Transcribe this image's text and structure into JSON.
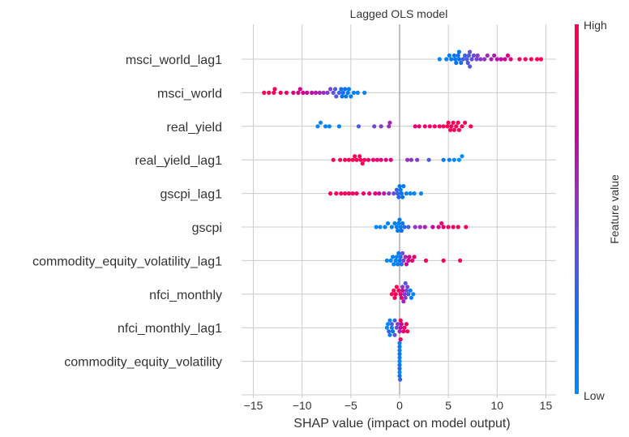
{
  "chart_data": {
    "type": "scatter",
    "subtype": "shap-beeswarm",
    "title": "Lagged OLS model",
    "xlabel": "SHAP value (impact on model output)",
    "ylabel": "",
    "xlim": [
      -16.5,
      16
    ],
    "xticks": [
      -15,
      -10,
      -5,
      0,
      5,
      10,
      15
    ],
    "xtick_labels": [
      "−15",
      "−10",
      "−5",
      "0",
      "5",
      "10",
      "15"
    ],
    "grid": true,
    "colorbar": {
      "label": "Feature value",
      "high_label": "High",
      "low_label": "Low",
      "low_color": "#008bfb",
      "high_color": "#ff0052"
    },
    "features": [
      {
        "name": "msci_world_lag1",
        "points": [
          [
            4.1,
            0.05
          ],
          [
            4.8,
            0.1
          ],
          [
            5.1,
            0.12
          ],
          [
            5.3,
            0.15
          ],
          [
            5.6,
            0.18
          ],
          [
            5.8,
            0.2
          ],
          [
            6.0,
            0.2
          ],
          [
            6.1,
            0.22
          ],
          [
            6.3,
            0.25
          ],
          [
            6.5,
            0.3
          ],
          [
            6.7,
            0.32
          ],
          [
            6.9,
            0.35
          ],
          [
            7.0,
            0.36
          ],
          [
            7.2,
            0.38
          ],
          [
            7.4,
            0.4
          ],
          [
            7.6,
            0.42
          ],
          [
            7.9,
            0.45
          ],
          [
            8.3,
            0.5
          ],
          [
            8.7,
            0.55
          ],
          [
            9.0,
            0.58
          ],
          [
            9.4,
            0.6
          ],
          [
            9.7,
            0.63
          ],
          [
            10.0,
            0.65
          ],
          [
            10.4,
            0.7
          ],
          [
            10.8,
            0.75
          ],
          [
            11.1,
            0.78
          ],
          [
            11.4,
            0.82
          ],
          [
            12.3,
            0.9
          ],
          [
            12.9,
            0.93
          ],
          [
            13.5,
            0.96
          ],
          [
            14.1,
            0.98
          ],
          [
            14.5,
            1.0
          ],
          [
            5.7,
            0.15
          ],
          [
            6.1,
            0.18
          ],
          [
            7.1,
            0.33
          ],
          [
            7.2,
            0.37
          ],
          [
            8.0,
            0.47
          ]
        ]
      },
      {
        "name": "msci_world",
        "points": [
          [
            -13.9,
            1.0
          ],
          [
            -13.4,
            0.98
          ],
          [
            -12.8,
            0.95
          ],
          [
            -12.2,
            0.93
          ],
          [
            -11.6,
            0.9
          ],
          [
            -10.9,
            0.8
          ],
          [
            -10.4,
            0.78
          ],
          [
            -9.9,
            0.75
          ],
          [
            -9.5,
            0.72
          ],
          [
            -9.0,
            0.68
          ],
          [
            -8.6,
            0.63
          ],
          [
            -8.2,
            0.6
          ],
          [
            -7.8,
            0.55
          ],
          [
            -7.4,
            0.5
          ],
          [
            -7.1,
            0.45
          ],
          [
            -6.8,
            0.4
          ],
          [
            -6.5,
            0.36
          ],
          [
            -6.2,
            0.3
          ],
          [
            -6.0,
            0.25
          ],
          [
            -5.8,
            0.22
          ],
          [
            -5.5,
            0.18
          ],
          [
            -5.3,
            0.15
          ],
          [
            -5.0,
            0.12
          ],
          [
            -4.7,
            0.1
          ],
          [
            -4.3,
            0.08
          ],
          [
            -3.6,
            0.05
          ],
          [
            -12.9,
            0.96
          ],
          [
            -10.2,
            0.77
          ],
          [
            -6.6,
            0.35
          ],
          [
            -5.9,
            0.2
          ],
          [
            -5.6,
            0.2
          ],
          [
            -5.2,
            0.12
          ]
        ]
      },
      {
        "name": "real_yield",
        "points": [
          [
            -8.4,
            0.02
          ],
          [
            -8.1,
            0.03
          ],
          [
            -7.6,
            0.05
          ],
          [
            -7.2,
            0.06
          ],
          [
            -6.2,
            0.08
          ],
          [
            -4.2,
            0.35
          ],
          [
            -2.6,
            0.45
          ],
          [
            -1.9,
            0.5
          ],
          [
            -1.1,
            0.55
          ],
          [
            -1.0,
            0.6
          ],
          [
            1.6,
            0.85
          ],
          [
            2.0,
            0.88
          ],
          [
            2.6,
            0.88
          ],
          [
            3.1,
            0.9
          ],
          [
            3.6,
            0.92
          ],
          [
            4.1,
            0.95
          ],
          [
            4.5,
            0.97
          ],
          [
            4.9,
            1.0
          ],
          [
            5.2,
            1.0
          ],
          [
            5.5,
            0.98
          ],
          [
            5.8,
            1.0
          ],
          [
            6.1,
            0.98
          ],
          [
            6.4,
            0.96
          ],
          [
            6.7,
            1.0
          ],
          [
            7.3,
            1.0
          ],
          [
            5.0,
            0.97
          ],
          [
            5.6,
            0.99
          ],
          [
            6.0,
            1.0
          ],
          [
            5.3,
            0.98
          ]
        ]
      },
      {
        "name": "real_yield_lag1",
        "points": [
          [
            -6.8,
            1.0
          ],
          [
            -6.1,
            1.0
          ],
          [
            -5.6,
            0.98
          ],
          [
            -5.2,
            0.98
          ],
          [
            -4.8,
            1.0
          ],
          [
            -4.4,
            0.97
          ],
          [
            -4.0,
            0.96
          ],
          [
            -3.6,
            0.95
          ],
          [
            -3.2,
            0.93
          ],
          [
            -2.7,
            0.9
          ],
          [
            -2.3,
            0.88
          ],
          [
            -1.9,
            0.86
          ],
          [
            -1.4,
            0.84
          ],
          [
            -0.9,
            0.82
          ],
          [
            0.8,
            0.55
          ],
          [
            1.2,
            0.5
          ],
          [
            1.8,
            0.48
          ],
          [
            3.0,
            0.35
          ],
          [
            4.5,
            0.15
          ],
          [
            5.1,
            0.1
          ],
          [
            5.6,
            0.05
          ],
          [
            6.1,
            0.02
          ],
          [
            6.4,
            0.0
          ],
          [
            -4.6,
            0.99
          ],
          [
            -4.1,
            0.97
          ],
          [
            -3.8,
            0.96
          ]
        ]
      },
      {
        "name": "gscpi_lag1",
        "points": [
          [
            -7.1,
            1.0
          ],
          [
            -6.5,
            0.98
          ],
          [
            -6.0,
            0.97
          ],
          [
            -5.6,
            0.96
          ],
          [
            -5.2,
            0.95
          ],
          [
            -4.8,
            0.93
          ],
          [
            -4.4,
            0.92
          ],
          [
            -3.7,
            0.9
          ],
          [
            -3.1,
            0.85
          ],
          [
            -2.5,
            0.8
          ],
          [
            -2.1,
            0.75
          ],
          [
            -1.6,
            0.65
          ],
          [
            -1.1,
            0.5
          ],
          [
            -0.6,
            0.4
          ],
          [
            -0.3,
            0.3
          ],
          [
            0.0,
            0.2
          ],
          [
            0.2,
            0.15
          ],
          [
            0.4,
            0.12
          ],
          [
            0.7,
            0.08
          ],
          [
            1.1,
            0.05
          ],
          [
            1.5,
            0.03
          ],
          [
            2.2,
            0.0
          ],
          [
            -0.1,
            0.25
          ],
          [
            0.1,
            0.18
          ],
          [
            -0.2,
            0.3
          ],
          [
            0.3,
            0.2
          ]
        ]
      },
      {
        "name": "gscpi",
        "points": [
          [
            -2.4,
            0.02
          ],
          [
            -2.0,
            0.03
          ],
          [
            -1.5,
            0.05
          ],
          [
            -1.2,
            0.05
          ],
          [
            -0.8,
            0.08
          ],
          [
            -0.5,
            0.1
          ],
          [
            -0.2,
            0.12
          ],
          [
            0.0,
            0.15
          ],
          [
            0.2,
            0.2
          ],
          [
            0.5,
            0.25
          ],
          [
            0.9,
            0.35
          ],
          [
            1.6,
            0.5
          ],
          [
            2.1,
            0.55
          ],
          [
            2.6,
            0.6
          ],
          [
            3.4,
            0.7
          ],
          [
            4.0,
            0.8
          ],
          [
            4.5,
            0.85
          ],
          [
            5.0,
            0.9
          ],
          [
            5.5,
            0.93
          ],
          [
            6.0,
            0.96
          ],
          [
            6.8,
            1.0
          ],
          [
            -0.1,
            0.1
          ],
          [
            0.1,
            0.15
          ],
          [
            -0.3,
            0.12
          ],
          [
            0.3,
            0.2
          ],
          [
            4.3,
            0.88
          ]
        ]
      },
      {
        "name": "commodity_equity_volatility_lag1",
        "points": [
          [
            -1.3,
            0.02
          ],
          [
            -0.9,
            0.05
          ],
          [
            -0.6,
            0.08
          ],
          [
            -0.4,
            0.1
          ],
          [
            -0.2,
            0.12
          ],
          [
            0.0,
            0.18
          ],
          [
            0.2,
            0.3
          ],
          [
            0.4,
            0.45
          ],
          [
            0.6,
            0.6
          ],
          [
            0.9,
            0.75
          ],
          [
            1.3,
            0.85
          ],
          [
            1.5,
            0.9
          ],
          [
            2.7,
            1.0
          ],
          [
            4.5,
            1.0
          ],
          [
            6.2,
            1.0
          ],
          [
            -0.7,
            0.05
          ],
          [
            -0.3,
            0.1
          ],
          [
            -0.1,
            0.15
          ],
          [
            0.1,
            0.25
          ],
          [
            0.3,
            0.4
          ],
          [
            0.7,
            0.7
          ],
          [
            1.0,
            0.8
          ]
        ]
      },
      {
        "name": "nfci_monthly",
        "points": [
          [
            -0.5,
            1.0
          ],
          [
            -0.3,
            1.0
          ],
          [
            -0.1,
            0.95
          ],
          [
            0.1,
            0.85
          ],
          [
            0.3,
            0.7
          ],
          [
            0.6,
            0.5
          ],
          [
            0.9,
            0.3
          ],
          [
            1.2,
            0.1
          ],
          [
            1.4,
            0.0
          ],
          [
            -0.8,
            1.0
          ],
          [
            -0.6,
            1.0
          ],
          [
            -0.4,
            0.98
          ],
          [
            0.2,
            0.8
          ],
          [
            0.4,
            0.6
          ],
          [
            0.7,
            0.4
          ],
          [
            1.1,
            0.15
          ],
          [
            0.3,
            0.55
          ],
          [
            0.5,
            0.5
          ],
          [
            0.8,
            0.45
          ],
          [
            0.6,
            0.35
          ]
        ]
      },
      {
        "name": "nfci_monthly_lag1",
        "points": [
          [
            -1.2,
            0.0
          ],
          [
            -1.0,
            0.05
          ],
          [
            -0.8,
            0.1
          ],
          [
            -0.5,
            0.3
          ],
          [
            -0.2,
            0.5
          ],
          [
            0.0,
            0.6
          ],
          [
            0.2,
            0.75
          ],
          [
            0.5,
            0.9
          ],
          [
            0.8,
            1.0
          ],
          [
            -1.3,
            0.0
          ],
          [
            -1.0,
            0.1
          ],
          [
            -0.7,
            0.2
          ],
          [
            -0.3,
            0.4
          ],
          [
            0.1,
            0.7
          ],
          [
            0.4,
            0.85
          ],
          [
            0.7,
            0.95
          ],
          [
            -1.1,
            0.3
          ],
          [
            -0.8,
            0.35
          ],
          [
            -0.5,
            0.4
          ],
          [
            0.1,
            1.0
          ]
        ]
      },
      {
        "name": "commodity_equity_volatility",
        "points": [
          [
            0.0,
            0.05
          ],
          [
            0.0,
            0.1
          ],
          [
            0.0,
            0.15
          ],
          [
            0.0,
            0.2
          ],
          [
            0.0,
            0.25
          ],
          [
            0.0,
            0.1
          ],
          [
            0.0,
            0.05
          ],
          [
            0.0,
            0.15
          ],
          [
            0.05,
            0.3
          ],
          [
            0.1,
            0.9
          ],
          [
            0.0,
            0.2
          ],
          [
            0.0,
            0.1
          ]
        ]
      }
    ]
  }
}
